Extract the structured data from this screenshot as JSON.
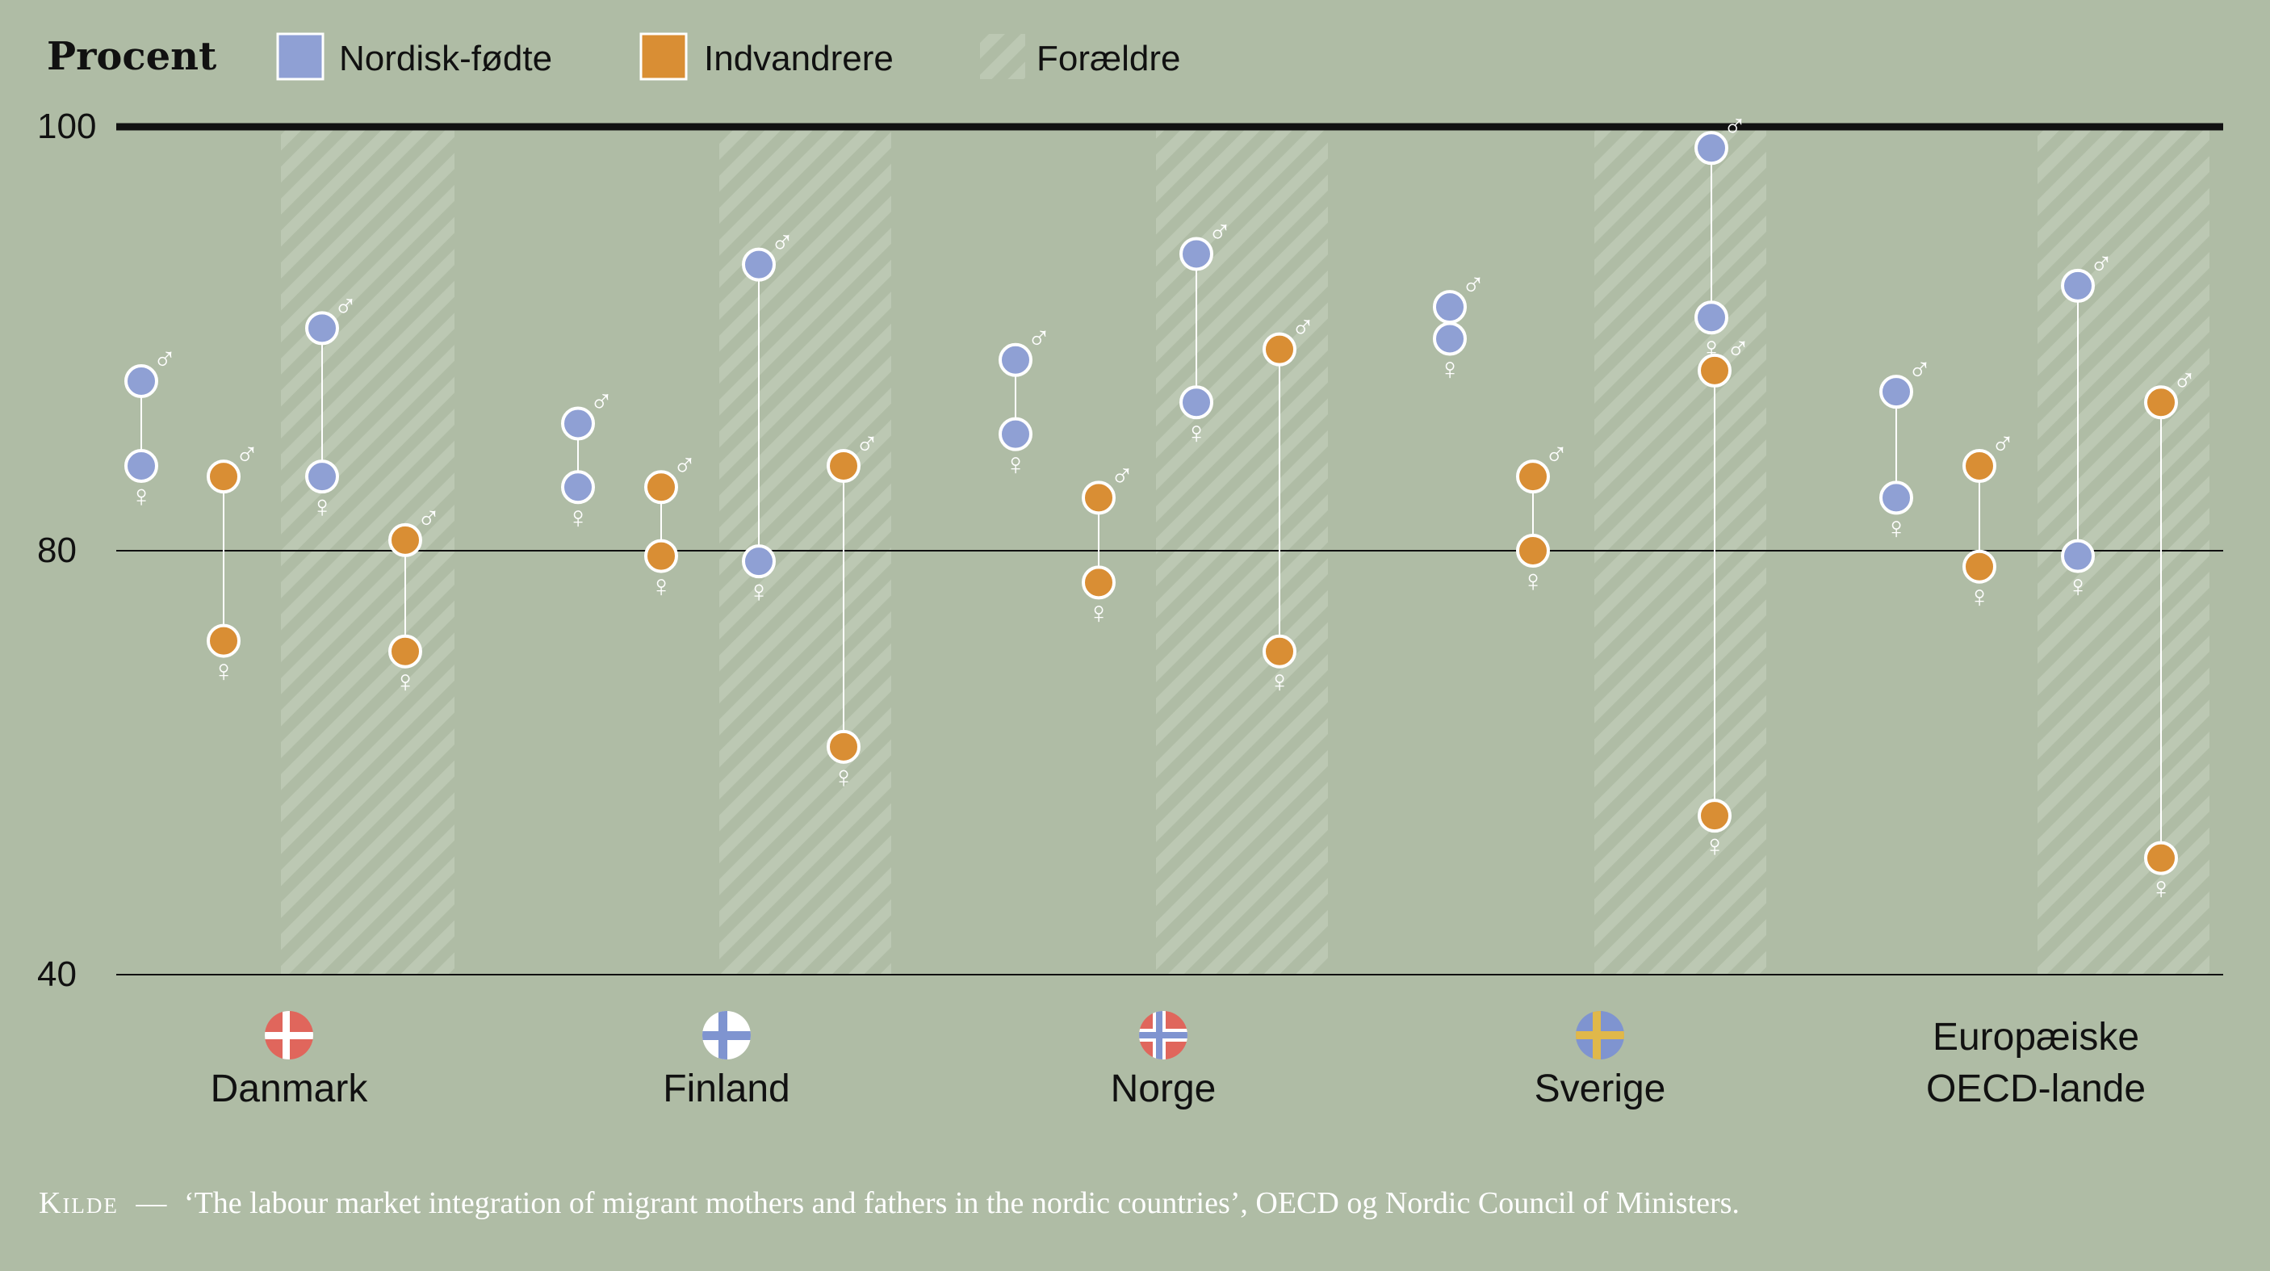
{
  "legend": {
    "title": "Procent",
    "items": [
      {
        "label": "Nordisk-fødte",
        "color": "#8fa0d4"
      },
      {
        "label": "Indvandrere",
        "color": "#d98e34"
      },
      {
        "label": "Forældre",
        "pattern": "hatched"
      }
    ]
  },
  "colors": {
    "background": "#afbca5",
    "nordic": "#8fa0d4",
    "immigrant": "#d98e34",
    "marker_outline": "#ffffff",
    "axis_line": "#111111"
  },
  "symbols": {
    "male": "♂",
    "female": "♀"
  },
  "source": {
    "label": "Kilde",
    "dash": "—",
    "text": "‘The labour market integration of migrant mothers and fathers in the nordic countries’, OECD og Nordic Council of Ministers."
  },
  "chart_data": {
    "type": "dumbbell",
    "y_unit": "Procent",
    "y_ticks": [
      100,
      80,
      40
    ],
    "axis_breaks": "non-linear scale: 100–80 and 80–40 drawn with equal-ish height ratio",
    "grid": true,
    "legend_placement": "top-left",
    "countries": [
      {
        "name": "Danmark",
        "flag": "denmark-flag",
        "groups": [
          {
            "population": "Nordisk-fødte",
            "parents": false,
            "male": 88,
            "female": 84
          },
          {
            "population": "Indvandrere",
            "parents": false,
            "male": 83.5,
            "female": 71.5
          },
          {
            "population": "Nordisk-fødte",
            "parents": true,
            "male": 90.5,
            "female": 83.5
          },
          {
            "population": "Indvandrere",
            "parents": true,
            "male": 80.5,
            "female": 70.5
          }
        ]
      },
      {
        "name": "Finland",
        "flag": "finland-flag",
        "groups": [
          {
            "population": "Nordisk-fødte",
            "parents": false,
            "male": 86,
            "female": 83
          },
          {
            "population": "Indvandrere",
            "parents": false,
            "male": 83,
            "female": 79.5
          },
          {
            "population": "Nordisk-fødte",
            "parents": true,
            "male": 93.5,
            "female": 79
          },
          {
            "population": "Indvandrere",
            "parents": true,
            "male": 84,
            "female": 61.5
          }
        ]
      },
      {
        "name": "Norge",
        "flag": "norway-flag",
        "groups": [
          {
            "population": "Nordisk-fødte",
            "parents": false,
            "male": 89,
            "female": 85.5
          },
          {
            "population": "Indvandrere",
            "parents": false,
            "male": 82.5,
            "female": 77
          },
          {
            "population": "Nordisk-fødte",
            "parents": true,
            "male": 94,
            "female": 87
          },
          {
            "population": "Indvandrere",
            "parents": true,
            "male": 89.5,
            "female": 70.5
          }
        ]
      },
      {
        "name": "Sverige",
        "flag": "sweden-flag",
        "groups": [
          {
            "population": "Nordisk-fødte",
            "parents": false,
            "male": 91.5,
            "female": 90
          },
          {
            "population": "Indvandrere",
            "parents": false,
            "male": 83.5,
            "female": 80
          }
        ]
      },
      {
        "name": "Sverige",
        "flag": "",
        "groups": [
          {
            "population": "Nordisk-fødte",
            "parents": true,
            "male": 99,
            "female": 91
          },
          {
            "population": "Indvandrere",
            "parents": true,
            "male": 88.5,
            "female": 55
          }
        ]
      },
      {
        "name": "Europæiske OECD-lande",
        "flag": "",
        "groups": [
          {
            "population": "Nordisk-fødte",
            "parents": false,
            "male": 87.5,
            "female": 82.5
          },
          {
            "population": "Indvandrere",
            "parents": false,
            "male": 84,
            "female": 78.5
          },
          {
            "population": "Nordisk-fødte",
            "parents": true,
            "male": 92.5,
            "female": 79.5
          },
          {
            "population": "Indvandrere",
            "parents": true,
            "male": 87,
            "female": 51
          }
        ]
      }
    ],
    "country_labels": [
      {
        "line1": "Danmark",
        "line2": ""
      },
      {
        "line1": "Finland",
        "line2": ""
      },
      {
        "line1": "Norge",
        "line2": ""
      },
      {
        "line1": "Sverige",
        "line2": ""
      },
      {
        "line1": "Europæiske",
        "line2": "OECD-lande"
      }
    ]
  }
}
